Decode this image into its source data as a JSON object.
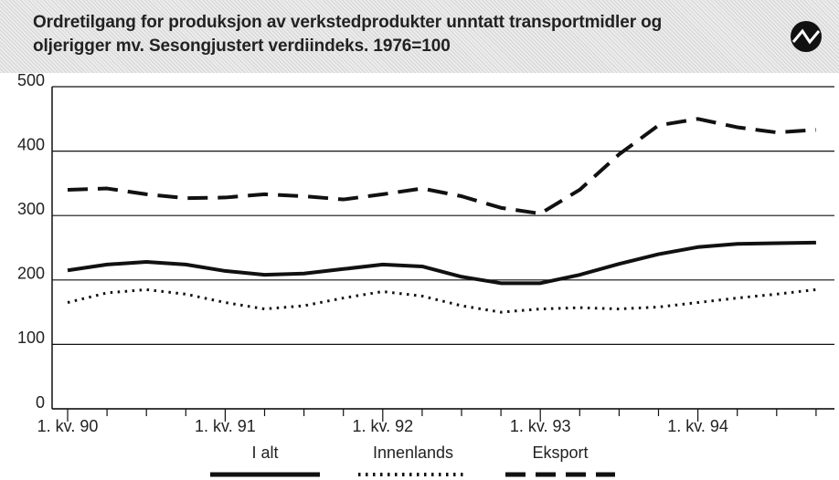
{
  "chart_data": {
    "type": "line",
    "title": [
      "Ordretilgang for produksjon av verkstedprodukter unntatt transportmidler og",
      "oljerigger mv. Sesongjustert verdiindeks. 1976=100"
    ],
    "categories": [
      "1. kv. 90",
      null,
      null,
      null,
      "1. kv. 91",
      null,
      null,
      null,
      "1. kv. 92",
      null,
      null,
      null,
      "1. kv. 93",
      null,
      null,
      null,
      "1. kv. 94",
      null,
      null,
      null
    ],
    "series": [
      {
        "name": "I alt",
        "color": "#111111",
        "style": "solid",
        "values": [
          215,
          224,
          228,
          224,
          214,
          208,
          210,
          217,
          224,
          221,
          205,
          195,
          195,
          208,
          225,
          240,
          251,
          256,
          257,
          258
        ]
      },
      {
        "name": "Innenlands",
        "color": "#111111",
        "style": "dotted",
        "values": [
          165,
          180,
          185,
          178,
          165,
          155,
          160,
          172,
          182,
          175,
          160,
          150,
          155,
          157,
          155,
          158,
          165,
          172,
          178,
          185
        ]
      },
      {
        "name": "Eksport",
        "color": "#111111",
        "style": "dashed",
        "values": [
          340,
          342,
          333,
          327,
          328,
          333,
          330,
          325,
          333,
          342,
          330,
          312,
          303,
          340,
          395,
          440,
          450,
          437,
          429,
          433
        ]
      }
    ],
    "ylim": [
      0,
      500
    ],
    "yticks": [
      0,
      100,
      200,
      300,
      400,
      500
    ],
    "grid": true
  }
}
